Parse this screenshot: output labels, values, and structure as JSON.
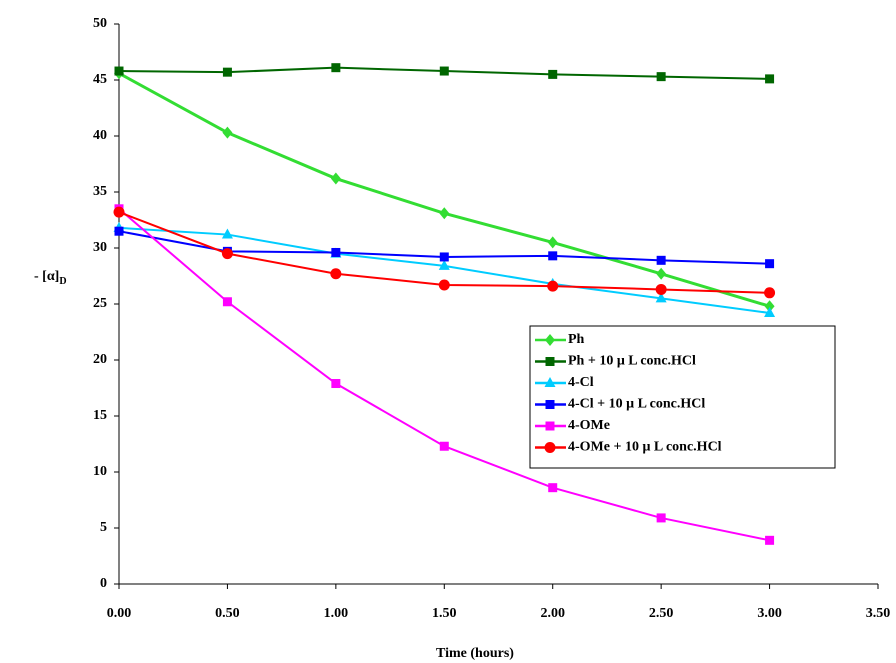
{
  "chart_data": {
    "type": "line",
    "x_label": "Time (hours)",
    "y_label": "- [α]",
    "y_label_sub": "D",
    "x": [
      0,
      0.5,
      1,
      1.5,
      2,
      2.5,
      3
    ],
    "xlim": [
      0,
      3.5
    ],
    "xticks": [
      {
        "value": 0,
        "label": "0.00"
      },
      {
        "value": 0.5,
        "label": "0.50"
      },
      {
        "value": 1,
        "label": "1.00"
      },
      {
        "value": 1.5,
        "label": "1.50"
      },
      {
        "value": 2,
        "label": "2.00"
      },
      {
        "value": 2.5,
        "label": "2.50"
      },
      {
        "value": 3,
        "label": "3.00"
      },
      {
        "value": 3.5,
        "label": "3.50"
      }
    ],
    "ylim": [
      0,
      50
    ],
    "yticks": [
      0,
      5,
      10,
      15,
      20,
      25,
      30,
      35,
      40,
      45,
      50
    ],
    "grid": false,
    "legend": "right",
    "series": [
      {
        "name": "Ph",
        "color": "#33dd33",
        "marker": "diamond",
        "values": [
          45.6,
          40.3,
          36.2,
          33.1,
          30.5,
          27.7,
          24.8
        ]
      },
      {
        "name": "Ph + 10 μ L conc.HCl",
        "color": "#006600",
        "marker": "square",
        "values": [
          45.8,
          45.7,
          46.1,
          45.8,
          45.5,
          45.3,
          45.1
        ]
      },
      {
        "name": "4-Cl",
        "color": "#00ccff",
        "marker": "triangle",
        "values": [
          31.8,
          31.2,
          29.5,
          28.4,
          26.8,
          25.5,
          24.2
        ]
      },
      {
        "name": "4-Cl + 10 μ L conc.HCl",
        "color": "#0000ff",
        "marker": "square",
        "values": [
          31.5,
          29.7,
          29.6,
          29.2,
          29.3,
          28.9,
          28.6
        ]
      },
      {
        "name": "4-OMe",
        "color": "#ff00ff",
        "marker": "square",
        "values": [
          33.5,
          25.2,
          17.9,
          12.3,
          8.6,
          5.9,
          3.9
        ]
      },
      {
        "name": "4-OMe + 10 μ L conc.HCl",
        "color": "#ff0000",
        "marker": "circle",
        "values": [
          33.2,
          29.5,
          27.7,
          26.7,
          26.6,
          26.3,
          26.0
        ]
      }
    ]
  }
}
